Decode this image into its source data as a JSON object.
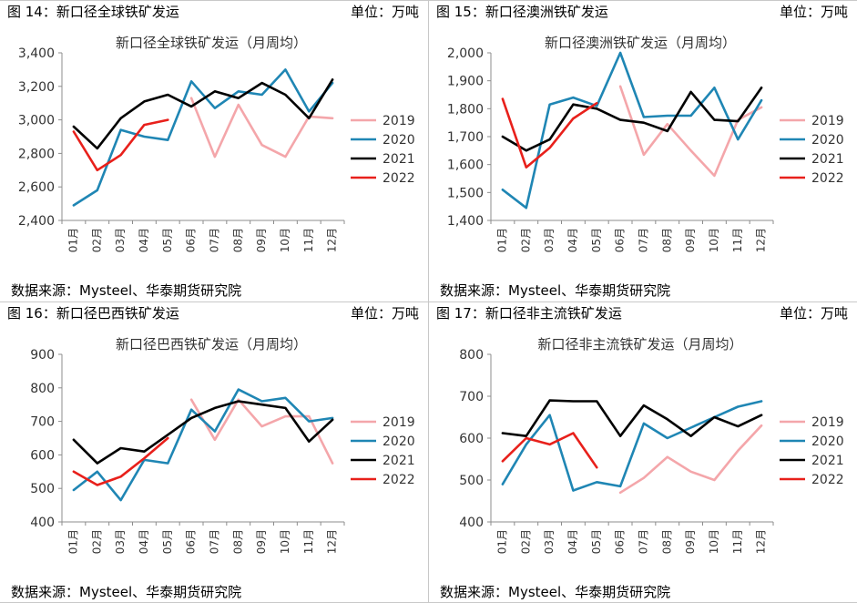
{
  "panels": [
    {
      "figure_title": "图 14：新口径全球铁矿发运",
      "unit": "单位：万吨",
      "source": "数据来源：Mysteel、华泰期货研究院",
      "chart_data": {
        "type": "line",
        "title": "新口径全球铁矿发运（月周均）",
        "categories": [
          "01月",
          "02月",
          "03月",
          "04月",
          "05月",
          "06月",
          "07月",
          "08月",
          "09月",
          "10月",
          "11月",
          "12月"
        ],
        "ylim": [
          2400,
          3400
        ],
        "yticks": [
          2400,
          2600,
          2800,
          3000,
          3200,
          3400
        ],
        "ytick_labels": [
          "2,400",
          "2,600",
          "2,800",
          "3,000",
          "3,200",
          "3,400"
        ],
        "legend_position": "right",
        "grid": false,
        "series": [
          {
            "name": "2019",
            "color": "#f4a6aa",
            "values": [
              null,
              null,
              null,
              null,
              null,
              3130,
              2780,
              3090,
              2850,
              2780,
              3020,
              3010
            ]
          },
          {
            "name": "2020",
            "color": "#1f86b4",
            "values": [
              2490,
              2580,
              2940,
              2900,
              2880,
              3230,
              3070,
              3170,
              3150,
              3300,
              3050,
              3220
            ]
          },
          {
            "name": "2021",
            "color": "#000000",
            "values": [
              2960,
              2830,
              3010,
              3110,
              3150,
              3080,
              3170,
              3130,
              3220,
              3150,
              3010,
              3240
            ]
          },
          {
            "name": "2022",
            "color": "#e8201b",
            "values": [
              2930,
              2700,
              2790,
              2970,
              3000,
              null,
              null,
              null,
              null,
              null,
              null,
              null
            ]
          }
        ]
      }
    },
    {
      "figure_title": "图 15：新口径澳洲铁矿发运",
      "unit": "单位：万吨",
      "source": "数据来源：Mysteel、华泰期货研究院",
      "chart_data": {
        "type": "line",
        "title": "新口径澳洲铁矿发运（月周均）",
        "categories": [
          "01月",
          "02月",
          "03月",
          "04月",
          "05月",
          "06月",
          "07月",
          "08月",
          "09月",
          "10月",
          "11月",
          "12月"
        ],
        "ylim": [
          1400,
          2000
        ],
        "yticks": [
          1400,
          1500,
          1600,
          1700,
          1800,
          1900,
          2000
        ],
        "ytick_labels": [
          "1,400",
          "1,500",
          "1,600",
          "1,700",
          "1,800",
          "1,900",
          "2,000"
        ],
        "legend_position": "right",
        "grid": false,
        "series": [
          {
            "name": "2019",
            "color": "#f4a6aa",
            "values": [
              null,
              null,
              null,
              null,
              null,
              1880,
              1635,
              1745,
              1650,
              1560,
              1760,
              1805
            ]
          },
          {
            "name": "2020",
            "color": "#1f86b4",
            "values": [
              1510,
              1445,
              1815,
              1840,
              1810,
              2000,
              1770,
              1775,
              1775,
              1875,
              1690,
              1830
            ]
          },
          {
            "name": "2021",
            "color": "#000000",
            "values": [
              1700,
              1650,
              1690,
              1815,
              1800,
              1760,
              1750,
              1720,
              1860,
              1760,
              1755,
              1875
            ]
          },
          {
            "name": "2022",
            "color": "#e8201b",
            "values": [
              1835,
              1590,
              1660,
              1765,
              1820,
              null,
              null,
              null,
              null,
              null,
              null,
              null
            ]
          }
        ]
      }
    },
    {
      "figure_title": "图 16：新口径巴西铁矿发运",
      "unit": "单位：万吨",
      "source": "数据来源：Mysteel、华泰期货研究院",
      "chart_data": {
        "type": "line",
        "title": "新口径巴西铁矿发运（月周均）",
        "categories": [
          "01月",
          "02月",
          "03月",
          "04月",
          "05月",
          "06月",
          "07月",
          "08月",
          "09月",
          "10月",
          "11月",
          "12月"
        ],
        "ylim": [
          400,
          900
        ],
        "yticks": [
          400,
          500,
          600,
          700,
          800,
          900
        ],
        "ytick_labels": [
          "400",
          "500",
          "600",
          "700",
          "800",
          "900"
        ],
        "legend_position": "right",
        "grid": false,
        "series": [
          {
            "name": "2019",
            "color": "#f4a6aa",
            "values": [
              null,
              null,
              null,
              null,
              null,
              765,
              645,
              765,
              685,
              715,
              715,
              575
            ]
          },
          {
            "name": "2020",
            "color": "#1f86b4",
            "values": [
              495,
              550,
              465,
              585,
              575,
              735,
              670,
              795,
              760,
              770,
              700,
              710
            ]
          },
          {
            "name": "2021",
            "color": "#000000",
            "values": [
              645,
              575,
              620,
              610,
              660,
              710,
              740,
              760,
              750,
              740,
              640,
              705
            ]
          },
          {
            "name": "2022",
            "color": "#e8201b",
            "values": [
              550,
              510,
              535,
              590,
              650,
              null,
              null,
              null,
              null,
              null,
              null,
              null
            ]
          }
        ]
      }
    },
    {
      "figure_title": "图 17：新口径非主流铁矿发运",
      "unit": "单位：万吨",
      "source": "数据来源：Mysteel、华泰期货研究院",
      "chart_data": {
        "type": "line",
        "title": "新口径非主流铁矿发运（月周均）",
        "categories": [
          "01月",
          "02月",
          "03月",
          "04月",
          "05月",
          "06月",
          "07月",
          "08月",
          "09月",
          "10月",
          "11月",
          "12月"
        ],
        "ylim": [
          400,
          800
        ],
        "yticks": [
          400,
          500,
          600,
          700,
          800
        ],
        "ytick_labels": [
          "400",
          "500",
          "600",
          "700",
          "800"
        ],
        "legend_position": "right",
        "grid": false,
        "series": [
          {
            "name": "2019",
            "color": "#f4a6aa",
            "values": [
              null,
              null,
              null,
              null,
              null,
              470,
              505,
              555,
              520,
              500,
              570,
              630
            ]
          },
          {
            "name": "2020",
            "color": "#1f86b4",
            "values": [
              490,
              585,
              655,
              475,
              495,
              485,
              635,
              600,
              625,
              650,
              675,
              688
            ]
          },
          {
            "name": "2021",
            "color": "#000000",
            "values": [
              612,
              605,
              690,
              688,
              688,
              605,
              678,
              645,
              605,
              650,
              628,
              655
            ]
          },
          {
            "name": "2022",
            "color": "#e8201b",
            "values": [
              545,
              600,
              585,
              612,
              530,
              null,
              null,
              null,
              null,
              null,
              null,
              null
            ]
          }
        ]
      }
    }
  ]
}
